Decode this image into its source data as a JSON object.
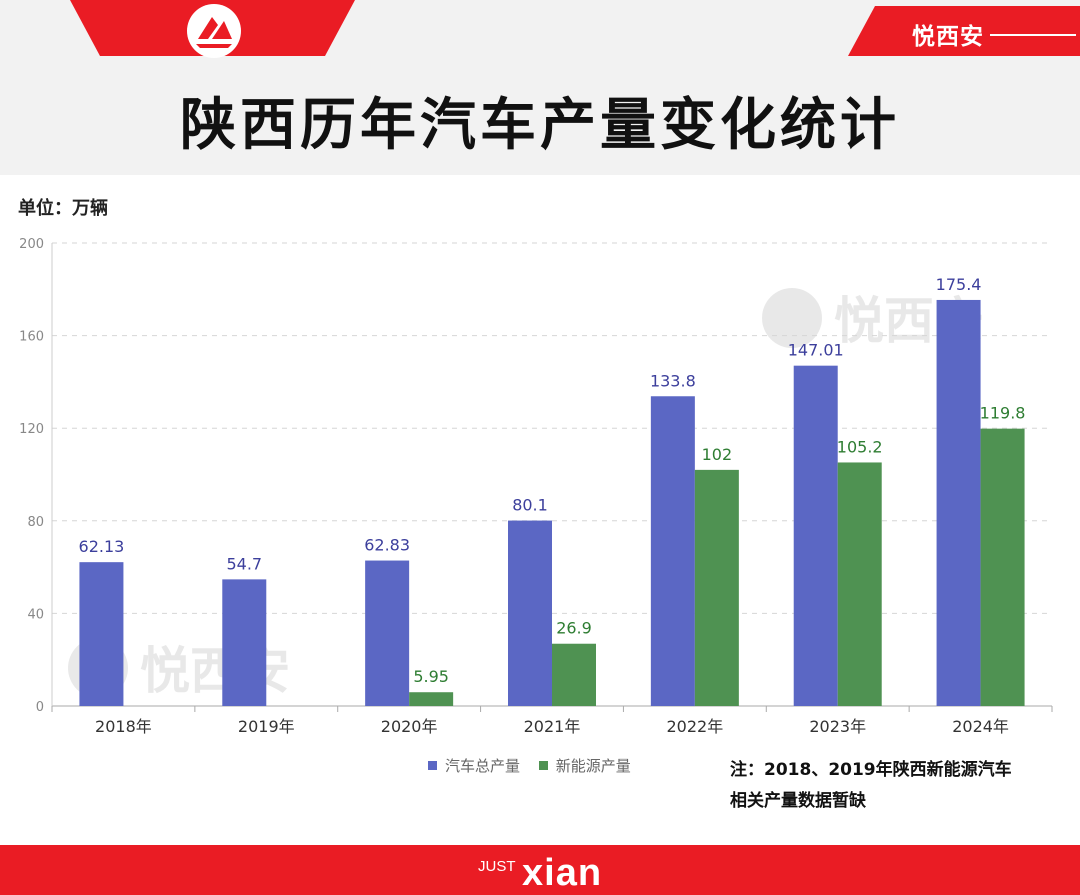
{
  "header": {
    "brand": "悦西安",
    "title": "陕西历年汽车产量变化统计",
    "unit": "单位：万辆"
  },
  "colors": {
    "brand_red": "#ea1c24",
    "total_series": "#5b67c4",
    "nev_series": "#4f9252",
    "total_label": "#3c3f9c",
    "nev_label": "#2e7d32"
  },
  "chart_data": {
    "type": "bar",
    "categories": [
      "2018年",
      "2019年",
      "2020年",
      "2021年",
      "2022年",
      "2023年",
      "2024年"
    ],
    "series": [
      {
        "name": "汽车总产量",
        "values": [
          62.13,
          54.7,
          62.83,
          80.1,
          133.8,
          147.01,
          175.4
        ]
      },
      {
        "name": "新能源产量",
        "values": [
          null,
          null,
          5.95,
          26.9,
          102,
          105.2,
          119.8
        ]
      }
    ],
    "ylim": [
      0,
      200
    ],
    "yticks": [
      0,
      40,
      80,
      120,
      160,
      200
    ],
    "grid": true,
    "legend": "bottom"
  },
  "watermark": "悦西安",
  "note": {
    "line1": "注：2018、2019年陕西新能源汽车",
    "line2": "相关产量数据暂缺"
  },
  "footer": {
    "logo_small": "JUST",
    "logo_big": "XIAN"
  }
}
